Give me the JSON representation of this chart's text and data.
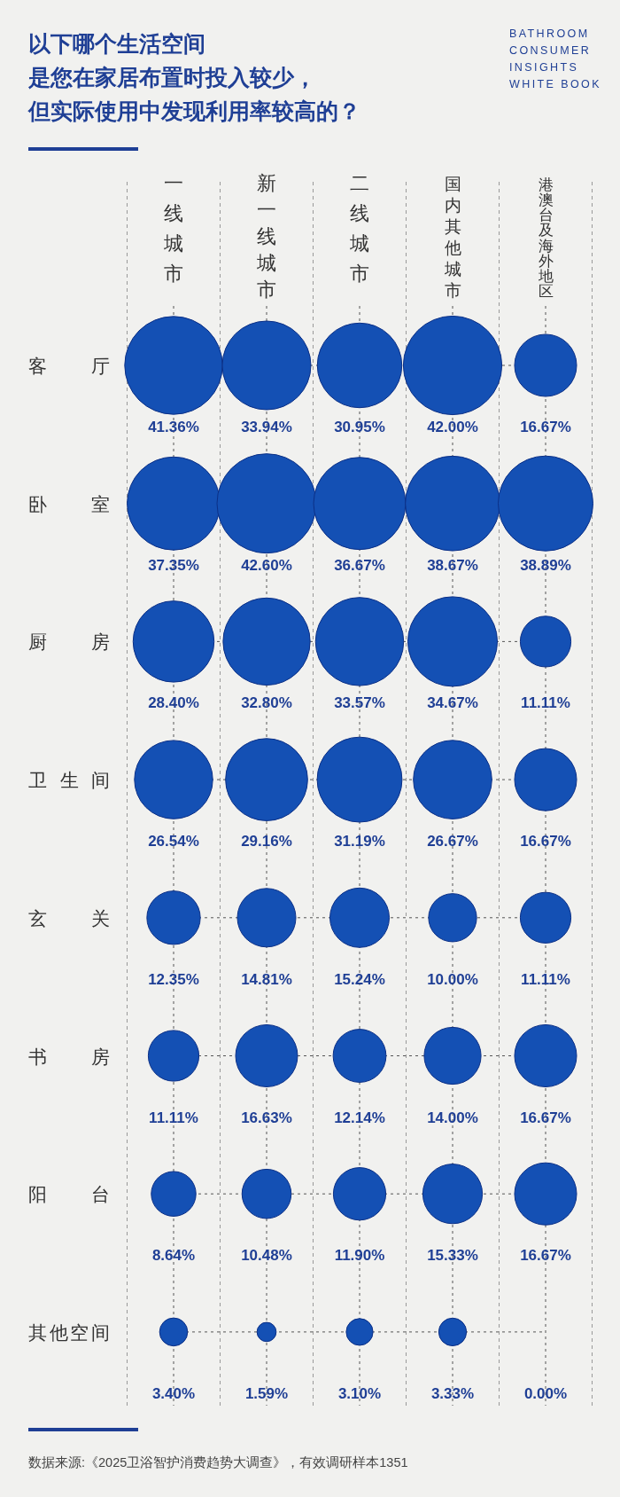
{
  "chart_data": {
    "type": "heatmap",
    "title": "以下哪个生活空间是您在家居布置时投入较少，但实际使用中发现利用率较高的？",
    "categories": [
      "一线城市",
      "新一线城市",
      "二线城市",
      "国内其他城市",
      "港澳台及海外地区"
    ],
    "y_categories": [
      "客厅",
      "卧室",
      "厨房",
      "卫生间",
      "玄关",
      "书房",
      "阳台",
      "其他空间"
    ],
    "color": "#1450b4",
    "cells": [
      [
        41.36,
        33.94,
        30.95,
        42.0,
        16.67
      ],
      [
        37.35,
        42.6,
        36.67,
        38.67,
        38.89
      ],
      [
        28.4,
        32.8,
        33.57,
        34.67,
        11.11
      ],
      [
        26.54,
        29.16,
        31.19,
        26.67,
        16.67
      ],
      [
        12.35,
        14.81,
        15.24,
        10.0,
        11.11
      ],
      [
        11.11,
        16.63,
        12.14,
        14.0,
        16.67
      ],
      [
        8.64,
        10.48,
        11.9,
        15.33,
        16.67
      ],
      [
        3.4,
        1.59,
        3.1,
        3.33,
        0.0
      ]
    ],
    "cell_labels": [
      [
        "41.36%",
        "33.94%",
        "30.95%",
        "42.00%",
        "16.67%"
      ],
      [
        "37.35%",
        "42.60%",
        "36.67%",
        "38.67%",
        "38.89%"
      ],
      [
        "28.40%",
        "32.80%",
        "33.57%",
        "34.67%",
        "11.11%"
      ],
      [
        "26.54%",
        "29.16%",
        "31.19%",
        "26.67%",
        "16.67%"
      ],
      [
        "12.35%",
        "14.81%",
        "15.24%",
        "10.00%",
        "11.11%"
      ],
      [
        "11.11%",
        "16.63%",
        "12.14%",
        "14.00%",
        "16.67%"
      ],
      [
        "8.64%",
        "10.48%",
        "11.90%",
        "15.33%",
        "16.67%"
      ],
      [
        "3.40%",
        "1.59%",
        "3.10%",
        "3.33%",
        "0.00%"
      ]
    ],
    "grid": true,
    "annotations": [
      "BATHROOM\nCONSUMER\nINSIGHTS\nWHITE BOOK",
      "数据来源:《2025卫浴智护消费趋势大调查》，有效调研样本1351"
    ]
  }
}
